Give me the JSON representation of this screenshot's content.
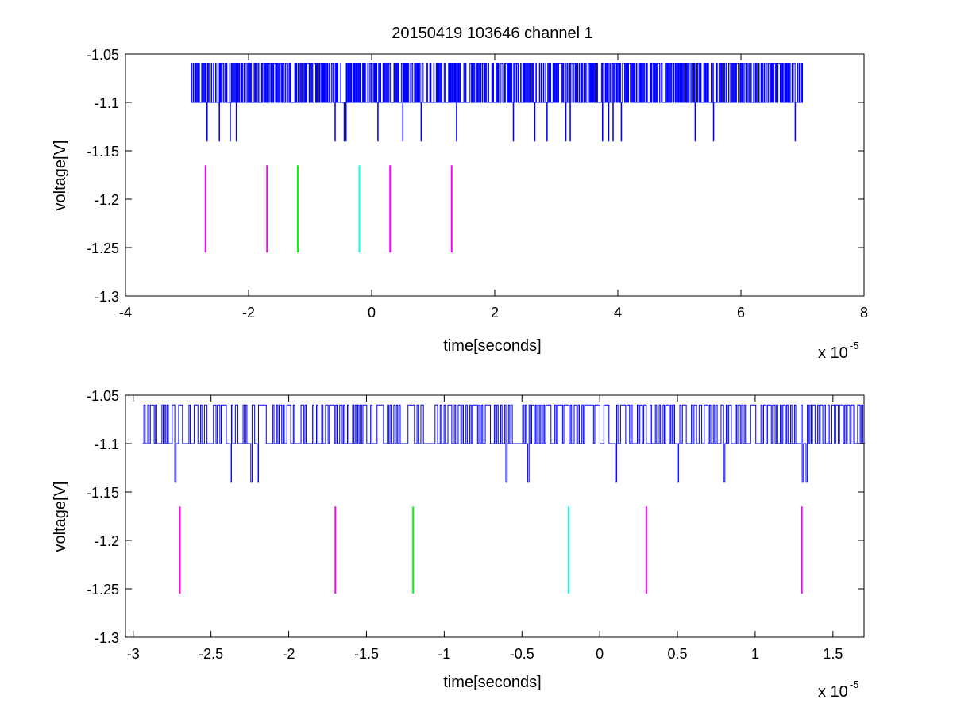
{
  "chart_data": [
    {
      "type": "line",
      "title": "20150419 103646 channel 1",
      "xlabel": "time[seconds]",
      "ylabel": "voltage[V]",
      "x_exponent_base": "x 10",
      "x_exponent_power": "-5",
      "xlim": [
        -4,
        8
      ],
      "ylim": [
        -1.3,
        -1.05
      ],
      "xticks": [
        -4,
        -2,
        0,
        2,
        4,
        6,
        8
      ],
      "xtick_labels": [
        "-4",
        "-2",
        "0",
        "2",
        "4",
        "6",
        "8"
      ],
      "yticks": [
        -1.05,
        -1.1,
        -1.15,
        -1.2,
        -1.25,
        -1.3
      ],
      "ytick_labels": [
        "-1.05",
        "-1.1",
        "-1.15",
        "-1.2",
        "-1.25",
        "-1.3"
      ],
      "grid": false,
      "signal": {
        "color": "#0000ff",
        "x_start": -2.94,
        "x_end": 7.0,
        "n": 1400,
        "levels": [
          -1.06,
          -1.1,
          -1.14
        ],
        "high_frac": 0.42,
        "low_at": [
          -2.68,
          -2.48,
          -2.3,
          -2.2,
          -0.6,
          -0.45,
          -0.42,
          0.1,
          0.5,
          0.8,
          1.38,
          2.3,
          2.65,
          2.85,
          3.15,
          3.22,
          3.75,
          3.85,
          3.92,
          4.05,
          5.25,
          5.55,
          6.88
        ]
      },
      "markers": {
        "y_range": [
          -1.255,
          -1.165
        ],
        "series": [
          {
            "color": "#ff00ff",
            "x": -2.7
          },
          {
            "color": "#ff00ff",
            "x": -1.7
          },
          {
            "color": "#00ff00",
            "x": -1.2
          },
          {
            "color": "#00ffff",
            "x": -0.2
          },
          {
            "color": "#ff00ff",
            "x": 0.3
          },
          {
            "color": "#ff00ff",
            "x": 1.3
          }
        ]
      }
    },
    {
      "type": "line",
      "title": "",
      "xlabel": "time[seconds]",
      "ylabel": "voltage[V]",
      "x_exponent_base": "x 10",
      "x_exponent_power": "-5",
      "xlim": [
        -3.05,
        1.7
      ],
      "ylim": [
        -1.3,
        -1.05
      ],
      "xticks": [
        -3,
        -2.5,
        -2,
        -1.5,
        -1,
        -0.5,
        0,
        0.5,
        1,
        1.5
      ],
      "xtick_labels": [
        "-3",
        "-2.5",
        "-2",
        "-1.5",
        "-1",
        "-0.5",
        "0",
        "0.5",
        "1",
        "1.5"
      ],
      "yticks": [
        -1.05,
        -1.1,
        -1.15,
        -1.2,
        -1.25,
        -1.3
      ],
      "ytick_labels": [
        "-1.05",
        "-1.1",
        "-1.15",
        "-1.2",
        "-1.25",
        "-1.3"
      ],
      "grid": false,
      "signal": {
        "color": "#0000ff",
        "x_start": -2.94,
        "x_end": 1.7,
        "n": 560,
        "levels": [
          -1.06,
          -1.1,
          -1.14
        ],
        "high_frac": 0.45,
        "low_at": [
          -2.73,
          -2.38,
          -2.24,
          -2.2,
          -0.6,
          -0.46,
          0.1,
          0.5,
          0.8,
          1.3,
          1.33
        ]
      },
      "markers": {
        "y_range": [
          -1.255,
          -1.165
        ],
        "series": [
          {
            "color": "#ff00ff",
            "x": -2.7
          },
          {
            "color": "#ff00ff",
            "x": -1.7
          },
          {
            "color": "#00ff00",
            "x": -1.2
          },
          {
            "color": "#00ffff",
            "x": -0.2
          },
          {
            "color": "#ff00ff",
            "x": 0.3
          },
          {
            "color": "#ff00ff",
            "x": 1.3
          }
        ]
      }
    }
  ]
}
